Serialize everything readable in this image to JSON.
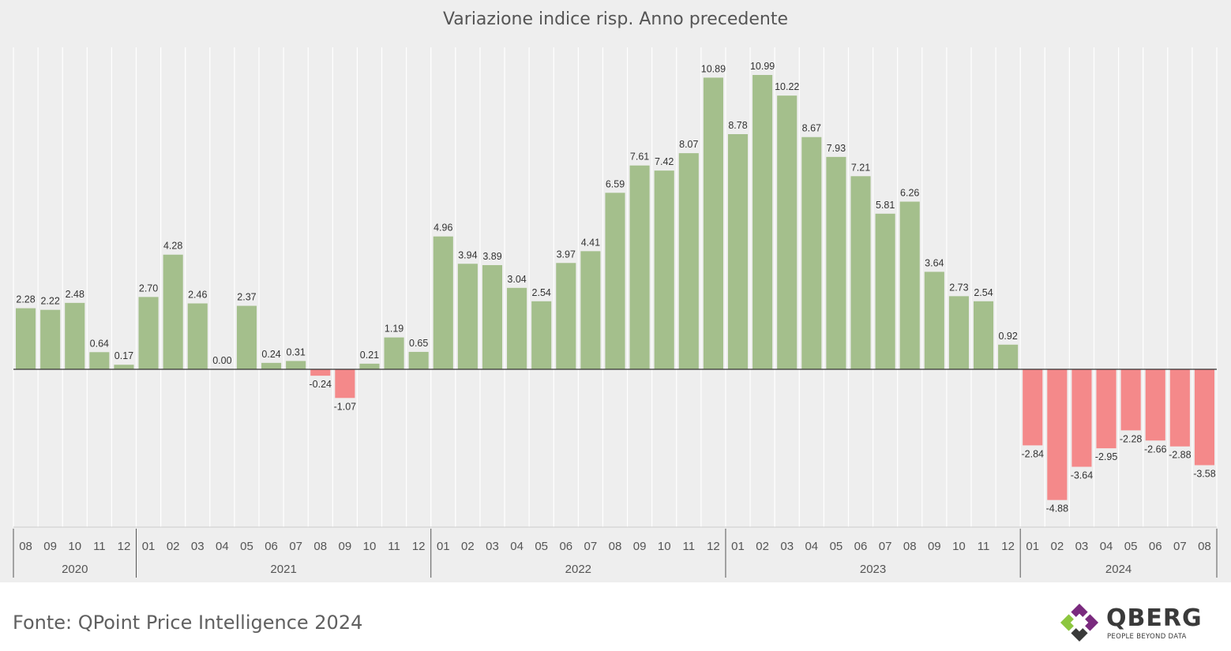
{
  "chart_data": {
    "type": "bar",
    "title": "Variazione indice risp. Anno precedente",
    "categories": [
      "08",
      "09",
      "10",
      "11",
      "12",
      "01",
      "02",
      "03",
      "04",
      "05",
      "06",
      "07",
      "08",
      "09",
      "10",
      "11",
      "12",
      "01",
      "02",
      "03",
      "04",
      "05",
      "06",
      "07",
      "08",
      "09",
      "10",
      "11",
      "12",
      "01",
      "02",
      "03",
      "04",
      "05",
      "06",
      "07",
      "08",
      "09",
      "10",
      "11",
      "12",
      "01",
      "02",
      "03",
      "04",
      "05",
      "06",
      "07",
      "08"
    ],
    "values": [
      2.28,
      2.22,
      2.48,
      0.64,
      0.17,
      2.7,
      4.28,
      2.46,
      0.0,
      2.37,
      0.24,
      0.31,
      -0.24,
      -1.07,
      0.21,
      1.19,
      0.65,
      4.96,
      3.94,
      3.89,
      3.04,
      2.54,
      3.97,
      4.41,
      6.59,
      7.61,
      7.42,
      8.07,
      10.89,
      8.78,
      10.99,
      10.22,
      8.67,
      7.93,
      7.21,
      5.81,
      6.26,
      3.64,
      2.73,
      2.54,
      0.92,
      -2.84,
      -4.88,
      -3.64,
      -2.95,
      -2.28,
      -2.66,
      -2.88,
      -3.58
    ],
    "value_labels": [
      "2.28",
      "2.22",
      "2.48",
      "0.64",
      "0.17",
      "2.70",
      "4.28",
      "2.46",
      "0.00",
      "2.37",
      "0.24",
      "0.31",
      "-0.24",
      "-1.07",
      "0.21",
      "1.19",
      "0.65",
      "4.96",
      "3.94",
      "3.89",
      "3.04",
      "2.54",
      "3.97",
      "4.41",
      "6.59",
      "7.61",
      "7.42",
      "8.07",
      "10.89",
      "8.78",
      "10.99",
      "10.22",
      "8.67",
      "7.93",
      "7.21",
      "5.81",
      "6.26",
      "3.64",
      "2.73",
      "2.54",
      "0.92",
      "-2.84",
      "-4.88",
      "-3.64",
      "-2.95",
      "-2.28",
      "-2.66",
      "-2.88",
      "-3.58"
    ],
    "years": [
      {
        "label": "2020",
        "count": 5
      },
      {
        "label": "2021",
        "count": 12
      },
      {
        "label": "2022",
        "count": 12
      },
      {
        "label": "2023",
        "count": 12
      },
      {
        "label": "2024",
        "count": 8
      }
    ],
    "ylim": [
      -5.8,
      11.85
    ],
    "grid": "vertical",
    "colors": {
      "positive": "#a4bf8c",
      "negative": "#f4898a",
      "background": "#eeeeee",
      "grid": "#ffffff",
      "axis": "#333333"
    }
  },
  "source": "Fonte: QPoint Price Intelligence 2024",
  "logo": {
    "name": "QBERG",
    "tagline": "PEOPLE BEYOND DATA"
  }
}
